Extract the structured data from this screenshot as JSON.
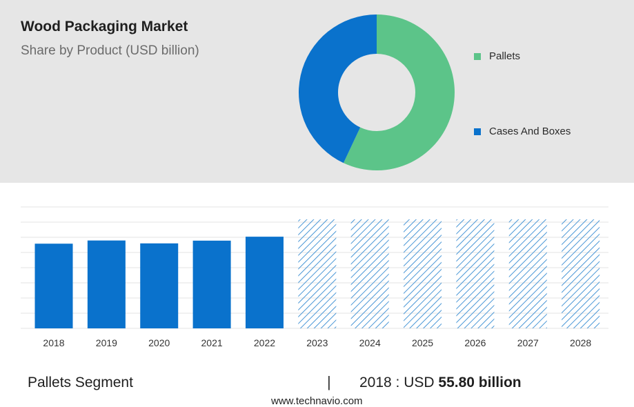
{
  "header": {
    "title": "Wood Packaging Market",
    "subtitle": "Share by Product (USD billion)"
  },
  "colors": {
    "pallets": "#5cc489",
    "cases_and_boxes": "#0a72cc",
    "bar": "#0a72cc",
    "forecast_hatch": "#4a97d6",
    "panel_bg": "#e6e6e6",
    "gridline": "#e3e3e3"
  },
  "chart_data": [
    {
      "type": "pie",
      "variant": "donut",
      "title": "Share by Product (USD billion)",
      "labels": [
        "Pallets",
        "Cases And Boxes"
      ],
      "values": [
        57,
        43
      ],
      "legend_position": "right"
    },
    {
      "type": "bar",
      "categories": [
        "2018",
        "2019",
        "2020",
        "2021",
        "2022",
        "2023",
        "2024",
        "2025",
        "2026",
        "2027",
        "2028"
      ],
      "values": [
        55.8,
        57.9,
        56.0,
        57.8,
        60.4,
        null,
        null,
        null,
        null,
        null,
        null
      ],
      "forecast_categories": [
        "2023",
        "2024",
        "2025",
        "2026",
        "2027",
        "2028"
      ],
      "forecast_style": "hatched",
      "ylim": [
        0,
        80
      ],
      "grid": true,
      "xlabel": "",
      "ylabel": ""
    }
  ],
  "footer": {
    "segment_label": "Pallets Segment",
    "separator": "|",
    "year_value_prefix": "2018 : USD ",
    "year_value_bold": "55.80 billion",
    "source": "www.technavio.com"
  }
}
